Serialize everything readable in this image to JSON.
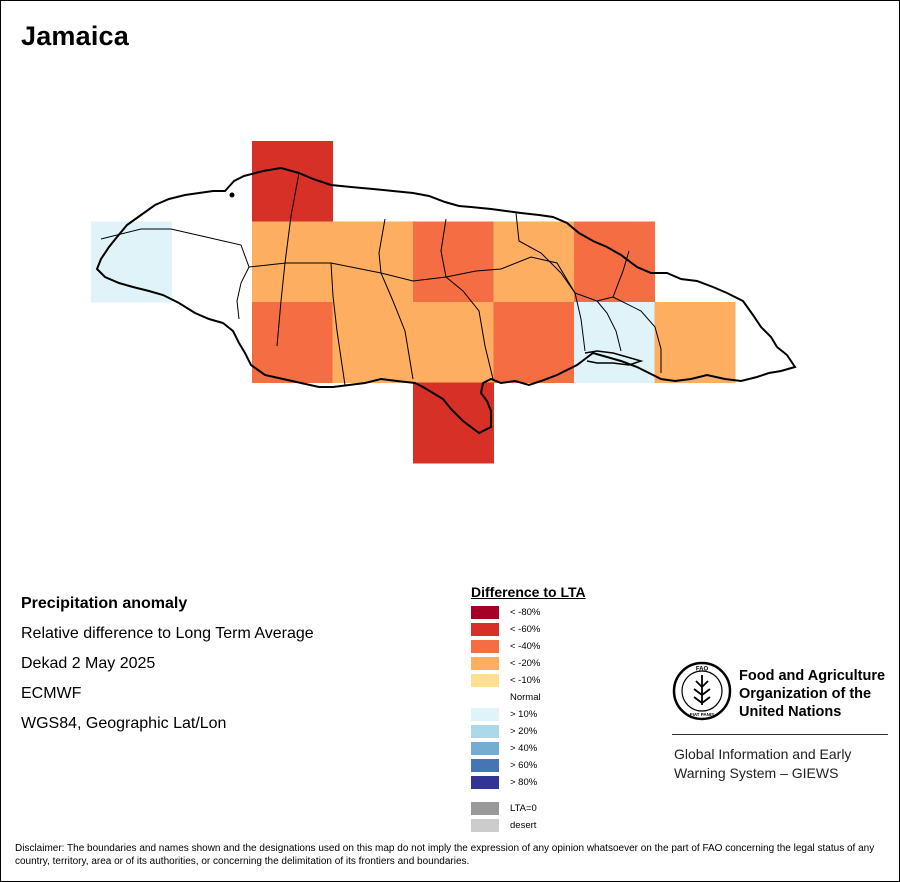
{
  "map": {
    "title": "Jamaica"
  },
  "info": {
    "heading": "Precipitation anomaly",
    "line1": "Relative difference to Long Term Average",
    "line2": "Dekad 2 May 2025",
    "line3": "ECMWF",
    "line4": "WGS84, Geographic Lat/Lon"
  },
  "legend": {
    "title": "Difference to LTA",
    "classes": [
      {
        "label": "< -80%",
        "color": "#a50026"
      },
      {
        "label": "< -60%",
        "color": "#d73027"
      },
      {
        "label": "< -40%",
        "color": "#f46d43"
      },
      {
        "label": "< -20%",
        "color": "#fdae61"
      },
      {
        "label": "< -10%",
        "color": "#fee090"
      },
      {
        "label": "Normal",
        "color": "#ffffff"
      },
      {
        "label": "> 10%",
        "color": "#e0f3f8"
      },
      {
        "label": "> 20%",
        "color": "#abd9e9"
      },
      {
        "label": "> 40%",
        "color": "#74add1"
      },
      {
        "label": "> 60%",
        "color": "#4575b4"
      },
      {
        "label": "> 80%",
        "color": "#313695"
      }
    ],
    "extra": [
      {
        "label": "LTA=0",
        "color": "#999999"
      },
      {
        "label": "desert",
        "color": "#cccccc"
      }
    ]
  },
  "grid_cells": [
    {
      "col": 2,
      "row": 0,
      "cls": "< -60%"
    },
    {
      "col": 0,
      "row": 1,
      "cls": "> 10%"
    },
    {
      "col": 2,
      "row": 1,
      "cls": "< -20%"
    },
    {
      "col": 3,
      "row": 1,
      "cls": "< -20%"
    },
    {
      "col": 4,
      "row": 1,
      "cls": "< -40%"
    },
    {
      "col": 5,
      "row": 1,
      "cls": "< -20%"
    },
    {
      "col": 6,
      "row": 1,
      "cls": "< -40%"
    },
    {
      "col": 2,
      "row": 2,
      "cls": "< -40%"
    },
    {
      "col": 3,
      "row": 2,
      "cls": "< -20%"
    },
    {
      "col": 4,
      "row": 2,
      "cls": "< -20%"
    },
    {
      "col": 5,
      "row": 2,
      "cls": "< -40%"
    },
    {
      "col": 6,
      "row": 2,
      "cls": "> 10%"
    },
    {
      "col": 7,
      "row": 2,
      "cls": "< -20%"
    },
    {
      "col": 4,
      "row": 3,
      "cls": "< -60%"
    }
  ],
  "organization": {
    "name_line1": "Food and Agriculture",
    "name_line2": "Organization of the",
    "name_line3": "United Nations",
    "emblem_text": "FAO",
    "emblem_motto": "FIAT PANIS",
    "system_line1": "Global Information and Early",
    "system_line2": "Warning System – GIEWS"
  },
  "disclaimer": "Disclaimer: The boundaries and names shown and the designations used on this map do not imply the expression of any opinion whatsoever on the part of FAO concerning the legal status of any country, territory, area or of its authorities, or concerning the delimitation of its frontiers and boundaries."
}
